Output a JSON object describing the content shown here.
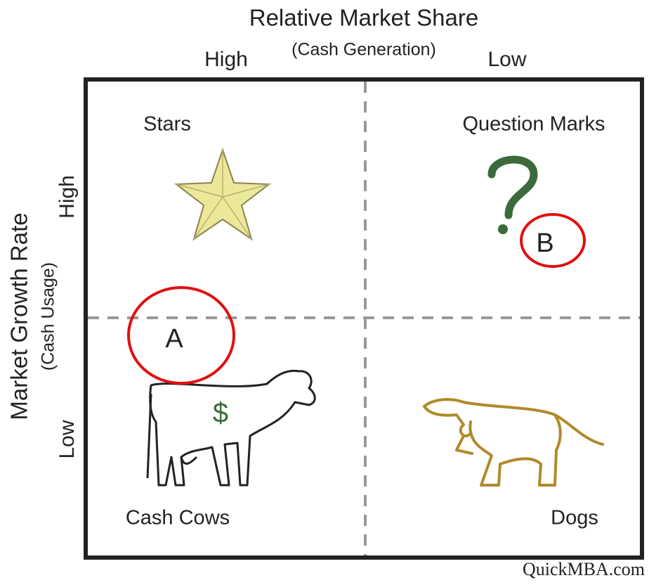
{
  "x_axis": {
    "title": "Relative Market Share",
    "subtitle": "(Cash Generation)",
    "high": "High",
    "low": "Low"
  },
  "y_axis": {
    "title": "Market Growth Rate",
    "subtitle": "(Cash Usage)",
    "high": "High",
    "low": "Low"
  },
  "quadrants": [
    {
      "label": "Stars"
    },
    {
      "label": "Question Marks"
    },
    {
      "label": "Cash Cows",
      "symbol": "$"
    },
    {
      "label": "Dogs"
    }
  ],
  "annotations": [
    {
      "label": "A"
    },
    {
      "label": "B"
    }
  ],
  "credit": "QuickMBA.com"
}
